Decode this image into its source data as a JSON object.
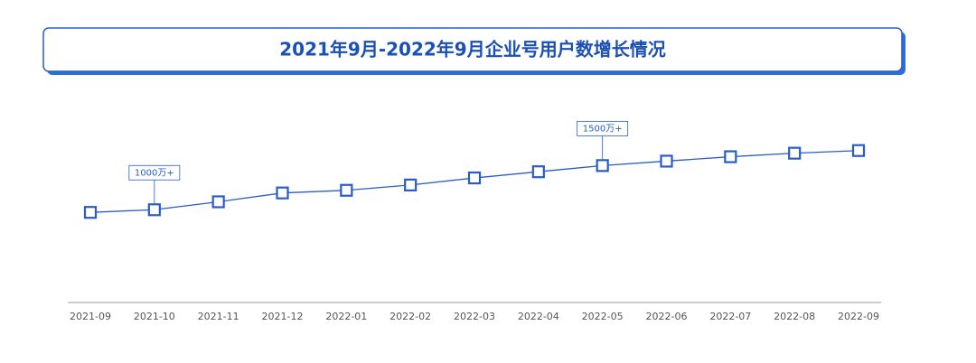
{
  "chart_data": {
    "type": "line",
    "title": "2021年9月-2022年9月企业号用户数增长情况",
    "categories": [
      "2021-09",
      "2021-10",
      "2021-11",
      "2021-12",
      "2022-01",
      "2022-02",
      "2022-03",
      "2022-04",
      "2022-05",
      "2022-06",
      "2022-07",
      "2022-08",
      "2022-09"
    ],
    "series": [
      {
        "color": "#2a5cc8",
        "values": [
          970,
          1000,
          1090,
          1190,
          1220,
          1280,
          1360,
          1430,
          1500,
          1550,
          1600,
          1640,
          1670
        ],
        "value_labels": [
          null,
          "1000万+",
          null,
          null,
          null,
          null,
          null,
          null,
          "1500万+",
          null,
          null,
          null,
          null
        ]
      }
    ],
    "ylim": [
      -50,
      1800
    ]
  }
}
